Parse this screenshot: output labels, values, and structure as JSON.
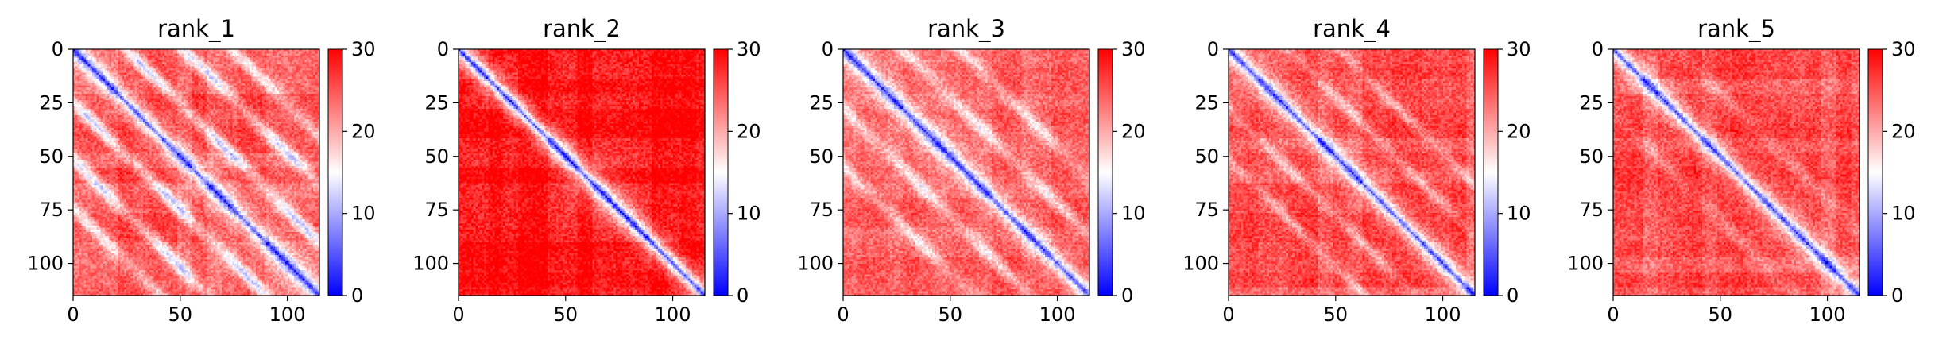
{
  "chart_data": [
    {
      "type": "heatmap",
      "title": "rank_1",
      "matrix_size": 116,
      "x_ticks": [
        0,
        50,
        100
      ],
      "y_ticks": [
        0,
        25,
        50,
        75,
        100
      ],
      "colorbar": {
        "min": 0,
        "max": 30,
        "ticks": [
          0,
          10,
          20,
          30
        ],
        "colormap": "bwr"
      },
      "diagonal_value": 4,
      "background_value": 25,
      "contact_bands": [
        {
          "offset": 25,
          "depth": 13,
          "width": 3
        },
        {
          "offset": 52,
          "depth": 12,
          "width": 3
        },
        {
          "offset": 75,
          "depth": 10,
          "width": 3
        }
      ]
    },
    {
      "type": "heatmap",
      "title": "rank_2",
      "matrix_size": 116,
      "x_ticks": [
        0,
        50,
        100
      ],
      "y_ticks": [
        0,
        25,
        50,
        75,
        100
      ],
      "colorbar": {
        "min": 0,
        "max": 30,
        "ticks": [
          0,
          10,
          20,
          30
        ],
        "colormap": "bwr"
      },
      "diagonal_value": 3,
      "background_value": 29,
      "contact_bands": []
    },
    {
      "type": "heatmap",
      "title": "rank_3",
      "matrix_size": 116,
      "x_ticks": [
        0,
        50,
        100
      ],
      "y_ticks": [
        0,
        25,
        50,
        75,
        100
      ],
      "colorbar": {
        "min": 0,
        "max": 30,
        "ticks": [
          0,
          10,
          20,
          30
        ],
        "colormap": "bwr"
      },
      "diagonal_value": 4,
      "background_value": 25,
      "contact_bands": [
        {
          "offset": 28,
          "depth": 9,
          "width": 3
        },
        {
          "offset": 55,
          "depth": 8,
          "width": 3
        }
      ]
    },
    {
      "type": "heatmap",
      "title": "rank_4",
      "matrix_size": 116,
      "x_ticks": [
        0,
        50,
        100
      ],
      "y_ticks": [
        0,
        25,
        50,
        75,
        100
      ],
      "colorbar": {
        "min": 0,
        "max": 30,
        "ticks": [
          0,
          10,
          20,
          30
        ],
        "colormap": "bwr"
      },
      "diagonal_value": 4,
      "background_value": 25,
      "contact_bands": [
        {
          "offset": 28,
          "depth": 7,
          "width": 2.5
        },
        {
          "offset": 52,
          "depth": 7,
          "width": 2.5
        }
      ]
    },
    {
      "type": "heatmap",
      "title": "rank_5",
      "matrix_size": 116,
      "x_ticks": [
        0,
        50,
        100
      ],
      "y_ticks": [
        0,
        25,
        50,
        75,
        100
      ],
      "colorbar": {
        "min": 0,
        "max": 30,
        "ticks": [
          0,
          10,
          20,
          30
        ],
        "colormap": "bwr"
      },
      "diagonal_value": 4,
      "background_value": 25,
      "contact_bands": [
        {
          "offset": 30,
          "depth": 4,
          "width": 3
        }
      ]
    }
  ]
}
